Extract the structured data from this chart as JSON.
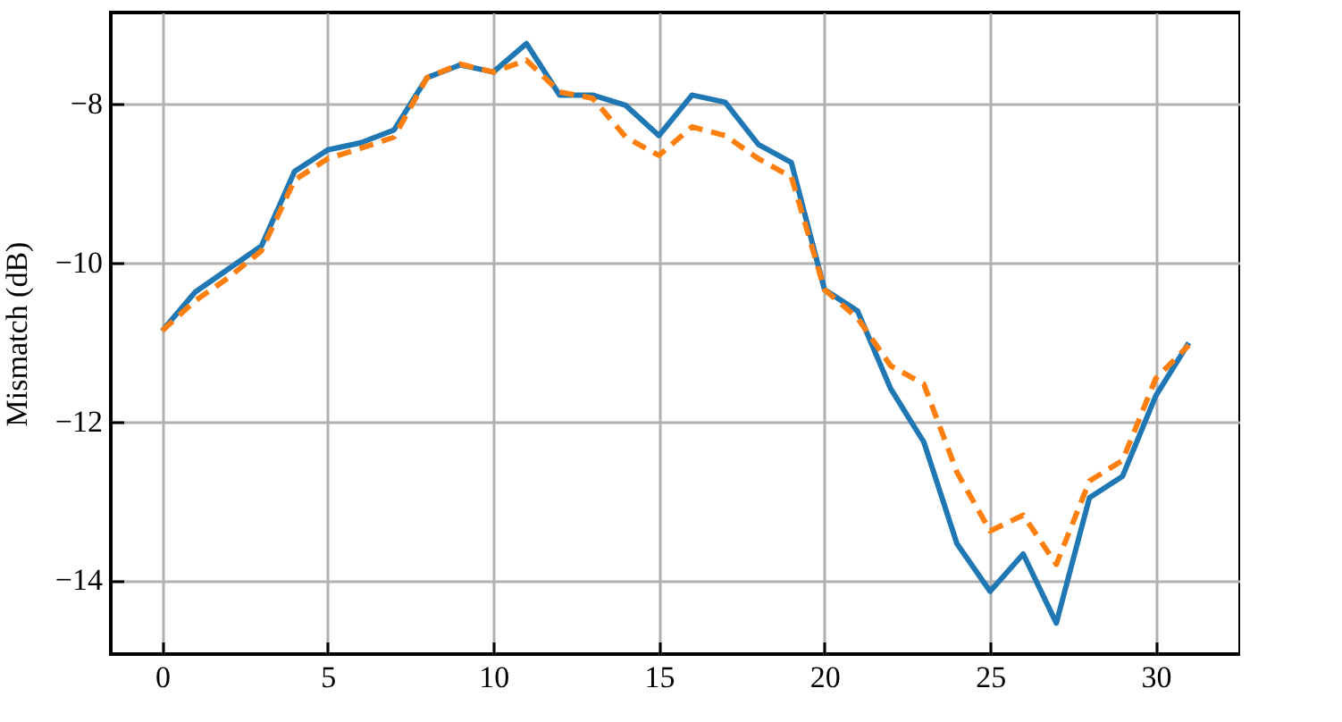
{
  "chart_data": {
    "type": "line",
    "ylabel": "Mismatch (dB)",
    "x": [
      0,
      1,
      2,
      3,
      4,
      5,
      6,
      7,
      8,
      9,
      10,
      11,
      12,
      13,
      14,
      15,
      16,
      17,
      18,
      19,
      20,
      21,
      22,
      23,
      24,
      25,
      26,
      27,
      28,
      29,
      30,
      31
    ],
    "series": [
      {
        "color": "#1f77b4",
        "line_style": "solid",
        "values": [
          -10.86,
          -10.37,
          -10.08,
          -9.79,
          -8.85,
          -8.58,
          -8.49,
          -8.33,
          -7.67,
          -7.51,
          -7.6,
          -7.24,
          -7.89,
          -7.89,
          -8.02,
          -8.4,
          -7.89,
          -7.98,
          -8.51,
          -8.74,
          -10.34,
          -10.61,
          -11.59,
          -12.26,
          -13.54,
          -14.14,
          -13.67,
          -14.54,
          -12.96,
          -12.69,
          -11.68,
          -11.01
        ]
      },
      {
        "color": "#ff7f0e",
        "line_style": "dashed",
        "values": [
          -10.86,
          -10.48,
          -10.19,
          -9.85,
          -8.96,
          -8.69,
          -8.56,
          -8.42,
          -7.67,
          -7.5,
          -7.6,
          -7.45,
          -7.85,
          -7.93,
          -8.42,
          -8.65,
          -8.29,
          -8.4,
          -8.69,
          -8.92,
          -10.34,
          -10.7,
          -11.3,
          -11.53,
          -12.64,
          -13.38,
          -13.18,
          -13.8,
          -12.75,
          -12.49,
          -11.46,
          -11.04
        ]
      }
    ],
    "xlim": [
      -1.55,
      32.55
    ],
    "ylim": [
      -14.93,
      -6.85
    ],
    "xticks": [
      0,
      5,
      10,
      15,
      20,
      25,
      30
    ],
    "yticks": [
      -14,
      -12,
      -10,
      -8
    ],
    "grid": true,
    "marker": "none"
  }
}
